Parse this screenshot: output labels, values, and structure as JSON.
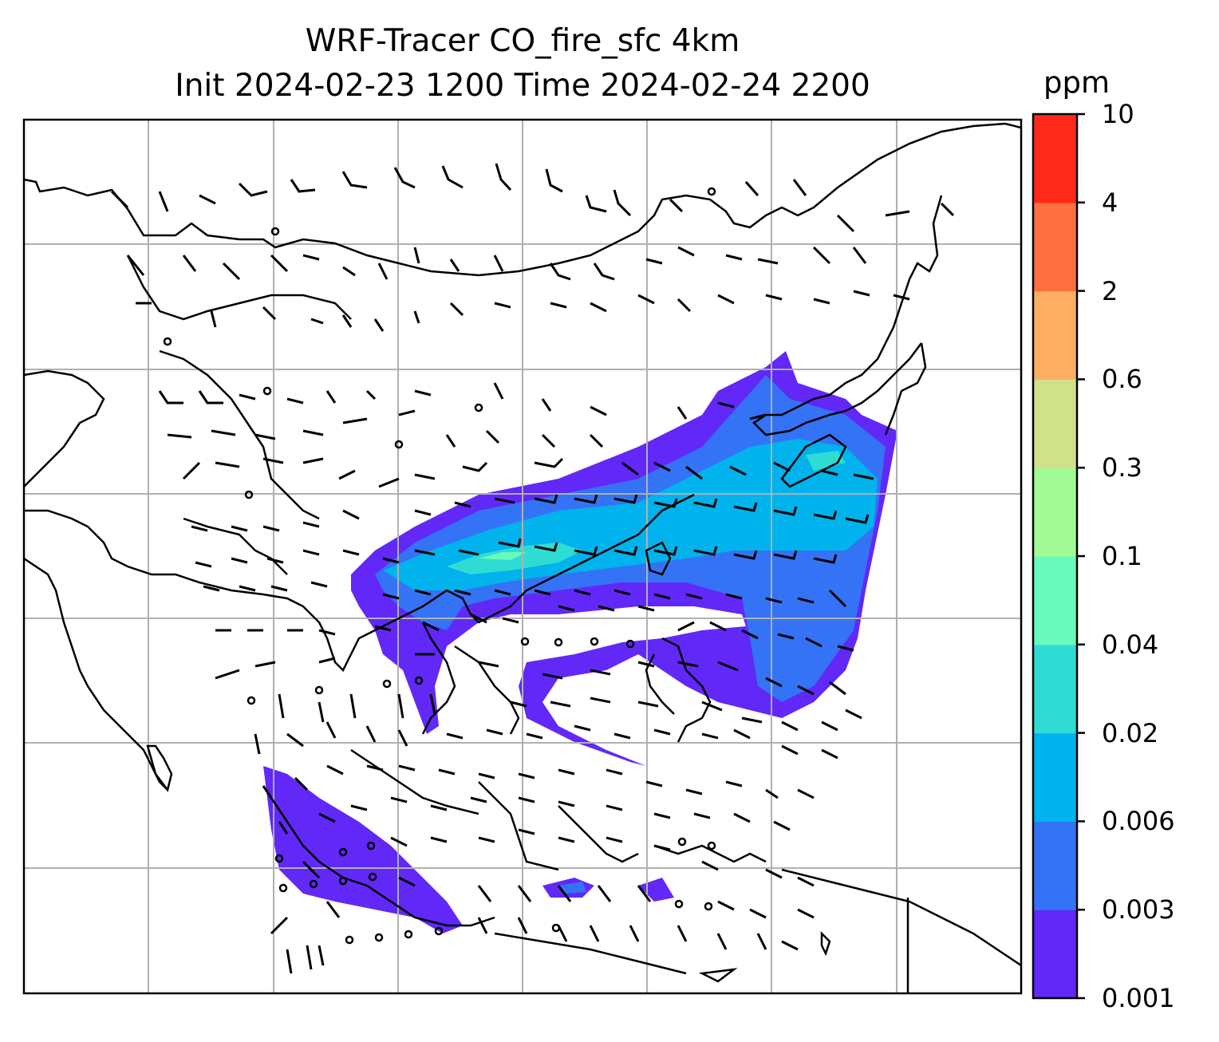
{
  "title": {
    "line1": "WRF-Tracer CO_fire_sfc 4km",
    "line2": "Init 2024-02-23 1200 Time 2024-02-24 2200"
  },
  "colorbar": {
    "unit": "ppm",
    "levels": [
      "0.001",
      "0.003",
      "0.006",
      "0.02",
      "0.04",
      "0.1",
      "0.3",
      "0.6",
      "2",
      "4",
      "10"
    ],
    "colors": [
      "#6128f8",
      "#3473f6",
      "#00b3ec",
      "#2fdcd4",
      "#69f9bc",
      "#a1fa95",
      "#d0e18a",
      "#feae62",
      "#ff7040",
      "#ff2919"
    ]
  },
  "map": {
    "gridlines": true,
    "features": [
      "coastlines",
      "country-borders",
      "wind-barbs",
      "co-fire-plume"
    ]
  }
}
